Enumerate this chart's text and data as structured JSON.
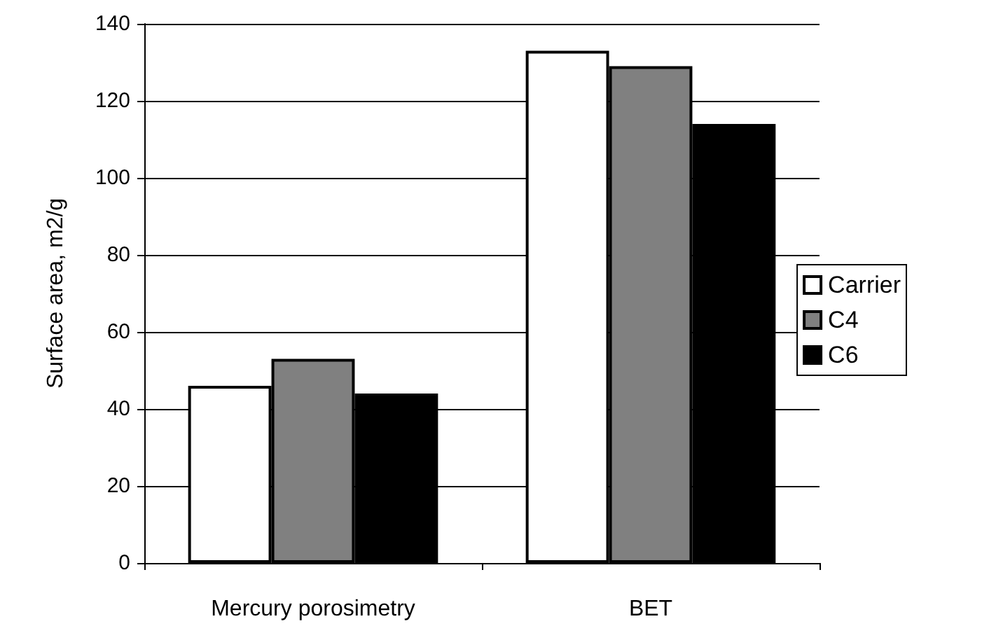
{
  "chart_data": {
    "type": "bar",
    "ylabel": "Surface area, m2/g",
    "categories": [
      "Mercury porosimetry",
      "BET"
    ],
    "series": [
      {
        "name": "Carrier",
        "color": "#ffffff",
        "values": [
          46,
          133
        ]
      },
      {
        "name": "C4",
        "color": "#808080",
        "values": [
          53,
          129
        ]
      },
      {
        "name": "C6",
        "color": "#000000",
        "values": [
          44,
          114
        ]
      }
    ],
    "ylim": [
      0,
      140
    ],
    "yticks": [
      0,
      20,
      40,
      60,
      80,
      100,
      120,
      140
    ],
    "grid": "y",
    "legend": "right"
  }
}
